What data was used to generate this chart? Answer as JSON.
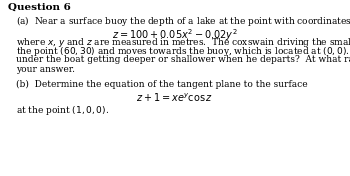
{
  "title": "Question 6",
  "part_a_intro": "(a)  Near a surface buoy the depth of a lake at the point with coordinates $(x, y)$ is given by",
  "eq_a": "$z = 100 + 0.05x^2 - 0.02y^2$",
  "part_a_line1": "where $x$, $y$ and $z$ are measured in metres.  The coxswain driving the small boat starts at",
  "part_a_line2": "the point $(60, 30)$ and moves towards the buoy, which is located at $(0, 0)$.  Is the water",
  "part_a_line3": "under the boat getting deeper or shallower when he departs?  At what rate?  Explain",
  "part_a_line4": "your answer.",
  "part_b_intro": "(b)  Determine the equation of the tangent plane to the surface",
  "eq_b": "$z + 1 = xe^y\\cos z$",
  "part_b_end": "at the point $(1, 0, 0)$.",
  "bg_color": "#ffffff",
  "text_color": "#000000",
  "title_fontsize": 7.5,
  "body_fontsize": 6.5,
  "eq_fontsize": 7.0
}
